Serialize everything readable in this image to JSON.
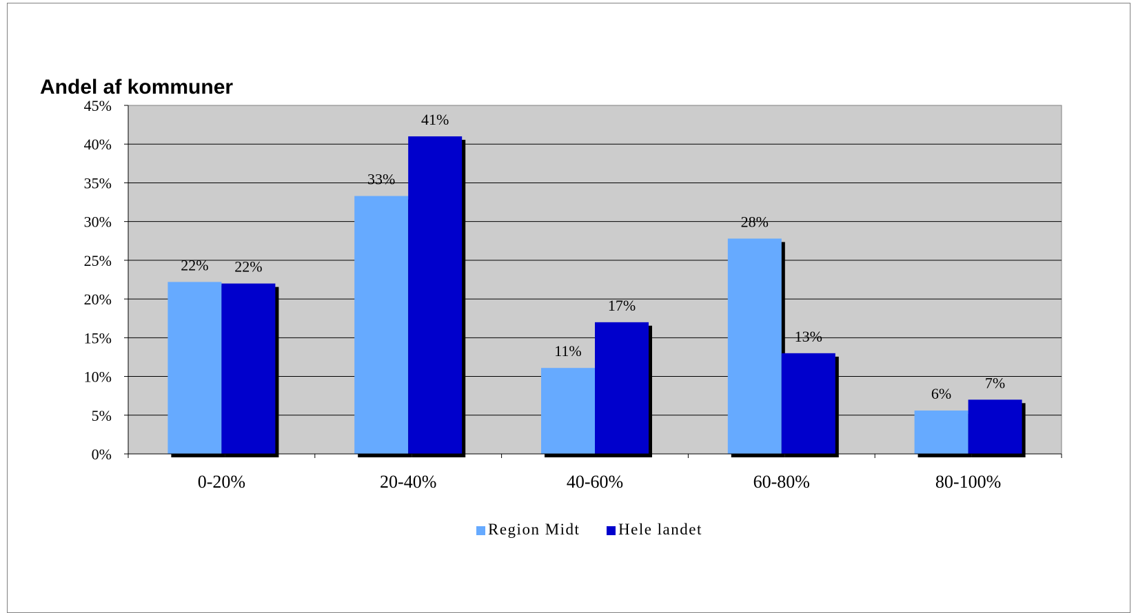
{
  "chart_data": {
    "type": "bar",
    "title": "Andel af kommuner",
    "categories": [
      "0-20%",
      "20-40%",
      "40-60%",
      "60-80%",
      "80-100%"
    ],
    "series": [
      {
        "name": "Region Midt",
        "values": [
          22.2,
          33.3,
          11.1,
          27.8,
          5.6
        ],
        "labels": [
          "22%",
          "33%",
          "11%",
          "28%",
          "6%"
        ],
        "color": "#66aaff"
      },
      {
        "name": "Hele landet",
        "values": [
          22,
          41,
          17,
          13,
          7
        ],
        "labels": [
          "22%",
          "41%",
          "17%",
          "13%",
          "7%"
        ],
        "color": "#0000cc"
      }
    ],
    "ylim": [
      0,
      45
    ],
    "yticks": [
      "0%",
      "5%",
      "10%",
      "15%",
      "20%",
      "25%",
      "30%",
      "35%",
      "40%",
      "45%"
    ],
    "grid": true,
    "plot_background": "#cccccc",
    "legend_position": "bottom"
  }
}
